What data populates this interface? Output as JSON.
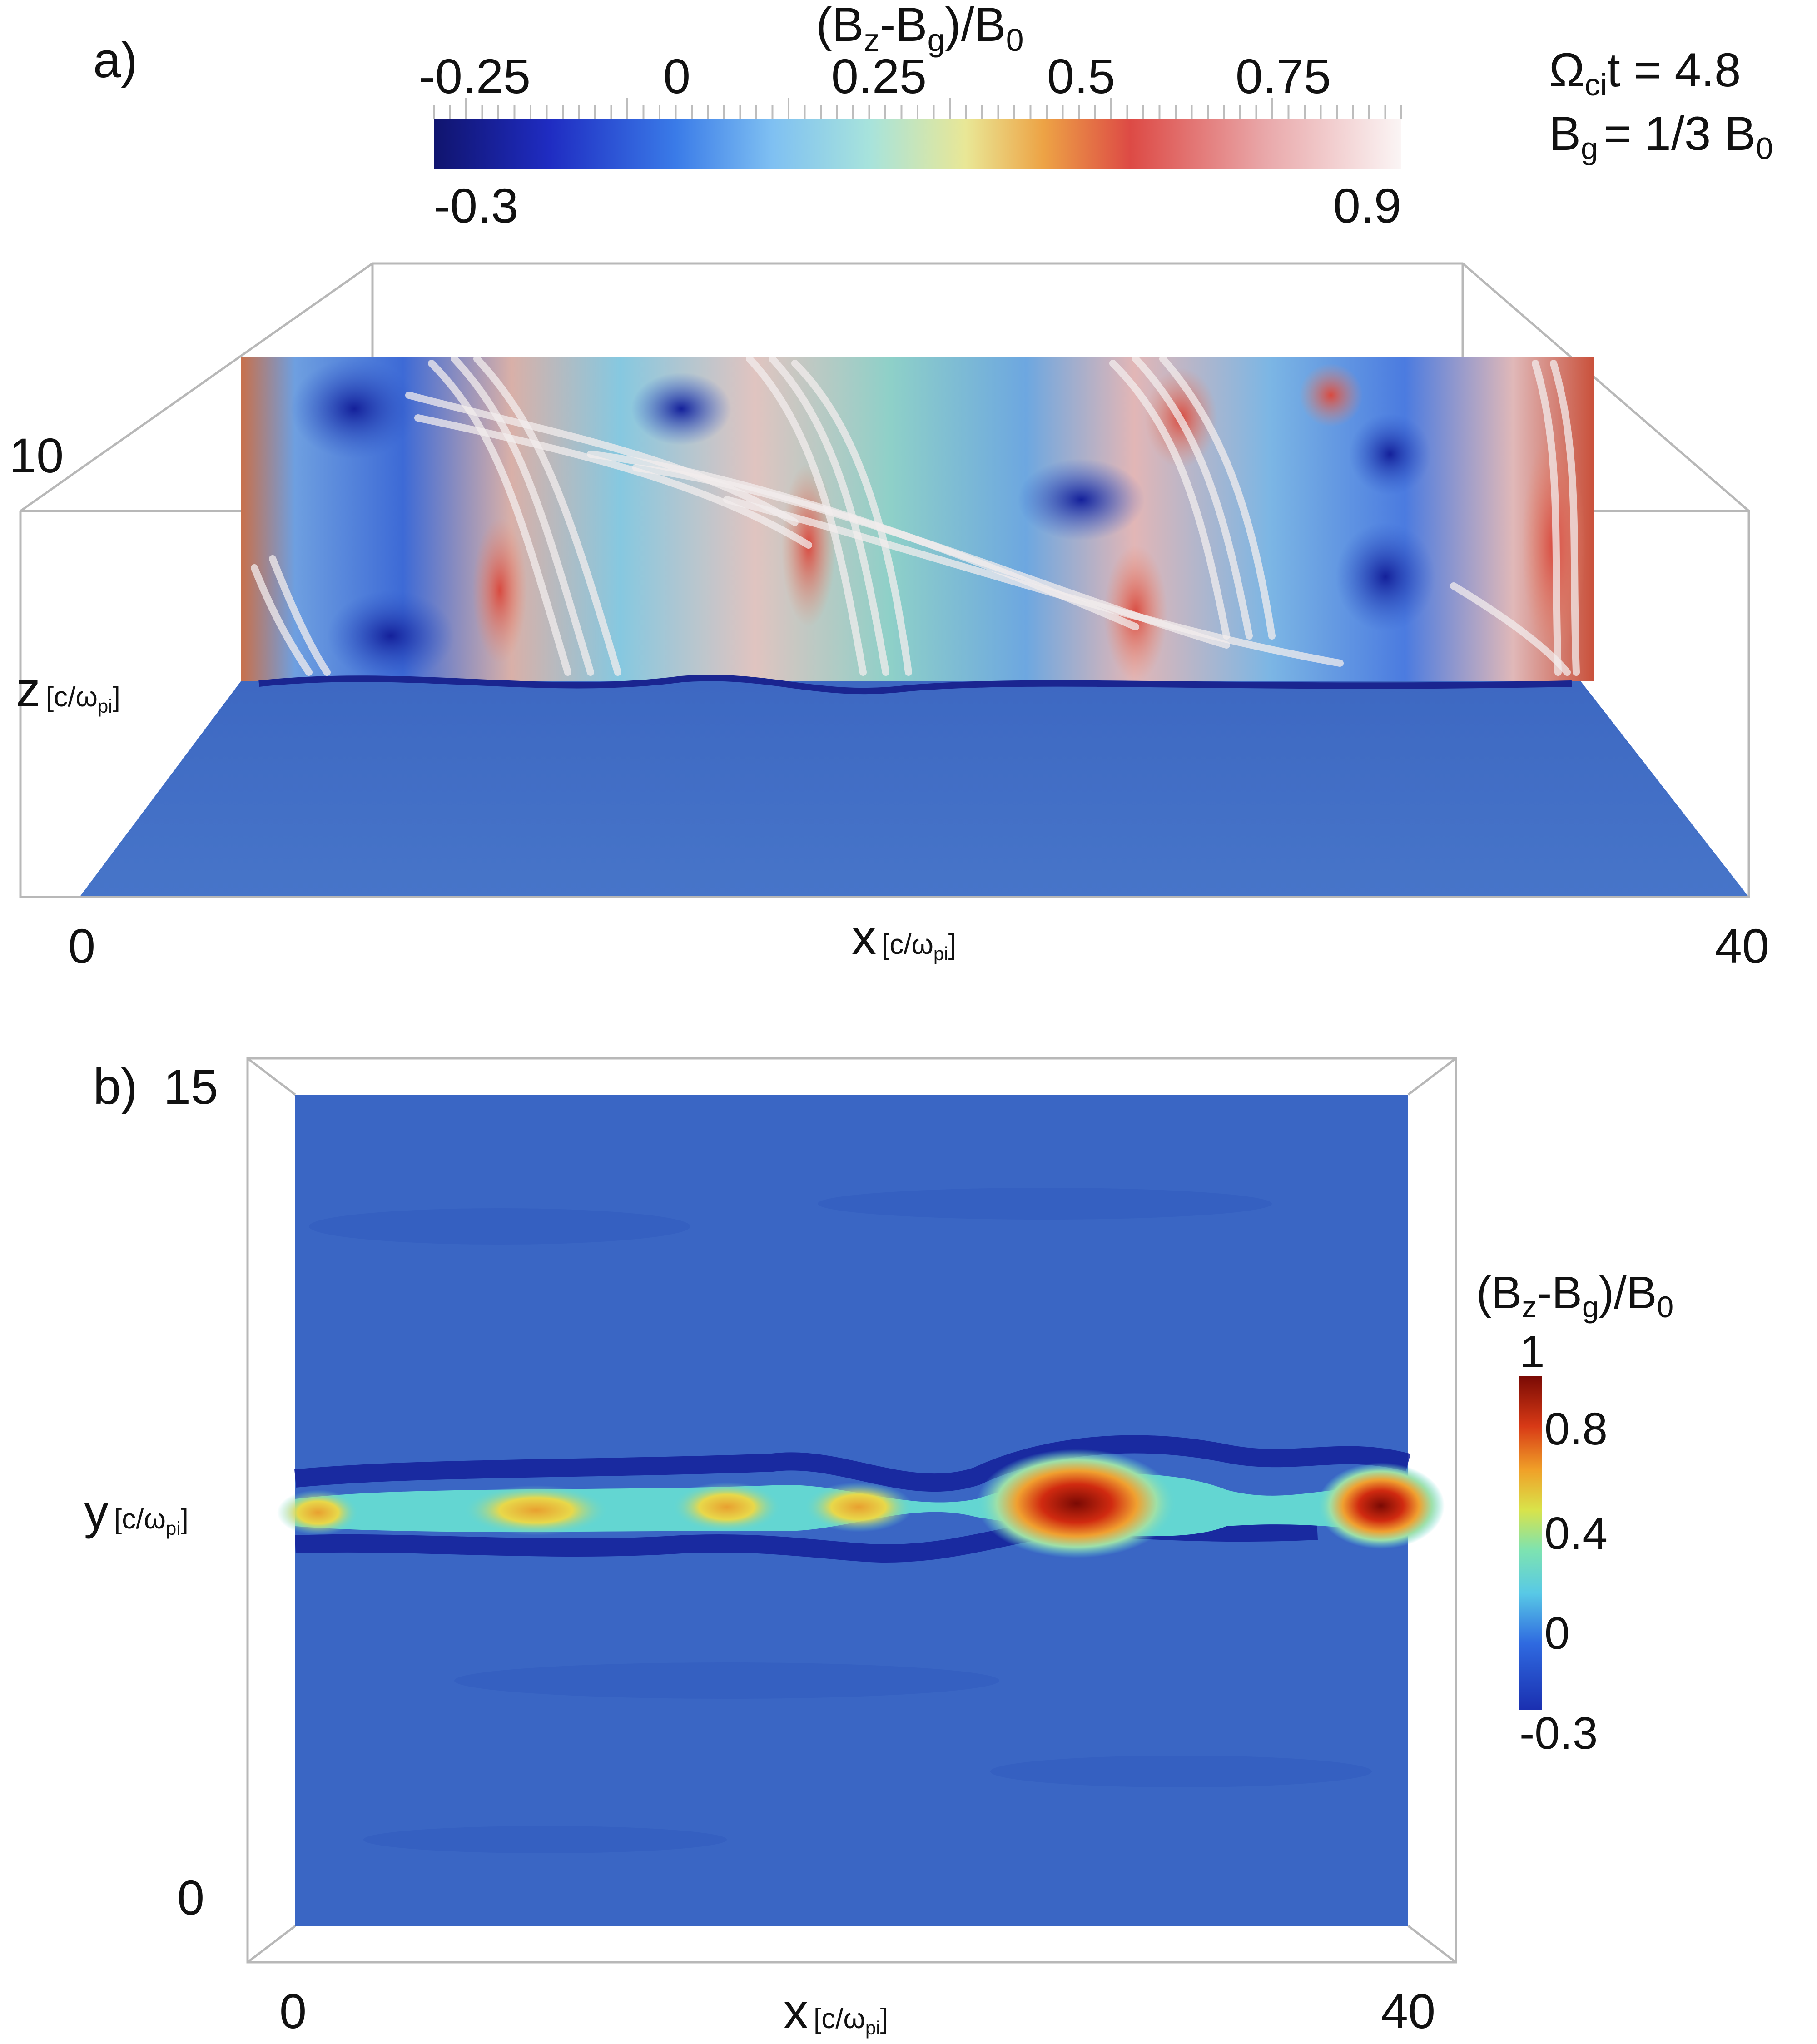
{
  "panel_a": {
    "label": "a)",
    "colorbar": {
      "title_main": "(B",
      "title_sub1": "z",
      "title_mid": "-B",
      "title_sub2": "g",
      "title_end": ")/B",
      "title_sub3": "0",
      "ticks": [
        "-0.25",
        "0",
        "0.25",
        "0.5",
        "0.75"
      ],
      "min_label": "-0.3",
      "max_label": "0.9",
      "range": [
        -0.3,
        0.9
      ]
    },
    "annotation": {
      "line1_main": "Ω",
      "line1_sub": "ci",
      "line1_end": "t = 4.8",
      "line2_main": "B",
      "line2_sub": "g",
      "line2_end": "= 1/3 B",
      "line2_sub2": "0"
    },
    "z_tick": "10",
    "z_label": "z",
    "z_unit": "[c/ω",
    "z_unit_sub": "pi",
    "z_unit_end": "]",
    "x_tick_min": "0",
    "x_tick_max": "40",
    "x_label": "x",
    "x_unit": "[c/ω",
    "x_unit_sub": "pi",
    "x_unit_end": "]"
  },
  "panel_b": {
    "label": "b)",
    "y_tick_max": "15",
    "y_tick_min": "0",
    "y_label": "y",
    "y_unit": "[c/ω",
    "y_unit_sub": "pi",
    "y_unit_end": "]",
    "x_tick_min": "0",
    "x_tick_max": "40",
    "x_label": "x",
    "x_unit": "[c/ω",
    "x_unit_sub": "pi",
    "x_unit_end": "]",
    "colorbar": {
      "title_main": "(B",
      "title_sub1": "z",
      "title_mid": "-B",
      "title_sub2": "g",
      "title_end": ")/B",
      "title_sub3": "0",
      "top_label": "1",
      "ticks": [
        "0.8",
        "0.4",
        "0"
      ],
      "min_label": "-0.3",
      "range": [
        -0.3,
        1.0
      ]
    },
    "colors": {
      "background": "#3a66c4",
      "deep": "#1a2b9e",
      "cyan": "#63d6d2",
      "yellow": "#e8d84a",
      "red": "#c71e10",
      "darkred": "#7a0a04"
    }
  }
}
